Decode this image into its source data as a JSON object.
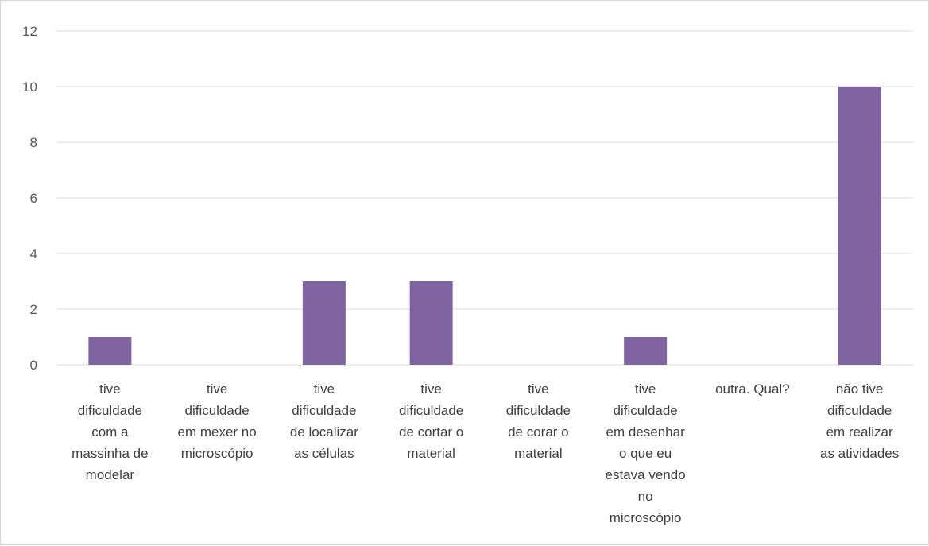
{
  "chart_data": {
    "type": "bar",
    "title": "",
    "xlabel": "",
    "ylabel": "",
    "categories": [
      [
        "tive",
        "dificuldade",
        "com a",
        "massinha de",
        "modelar"
      ],
      [
        "tive",
        "dificuldade",
        "em mexer no",
        "microscópio"
      ],
      [
        "tive",
        "dificuldade",
        "de localizar",
        "as células"
      ],
      [
        "tive",
        "dificuldade",
        "de cortar o",
        "material"
      ],
      [
        "tive",
        "dificuldade",
        "de corar o",
        "material"
      ],
      [
        "tive",
        "dificuldade",
        "em desenhar",
        "o que eu",
        "estava vendo",
        "no",
        "microscópio"
      ],
      [
        "outra. Qual?"
      ],
      [
        "não tive",
        "dificuldade",
        "em realizar",
        "as atividades"
      ]
    ],
    "values": [
      1,
      0,
      3,
      3,
      0,
      1,
      0,
      10
    ],
    "yticks": [
      "0",
      "2",
      "4",
      "6",
      "8",
      "10",
      "12"
    ],
    "ylim": [
      0,
      12
    ],
    "grid": true,
    "legend": "none",
    "bar_color": "#8064a2",
    "grid_color": "#d9d9d9"
  }
}
